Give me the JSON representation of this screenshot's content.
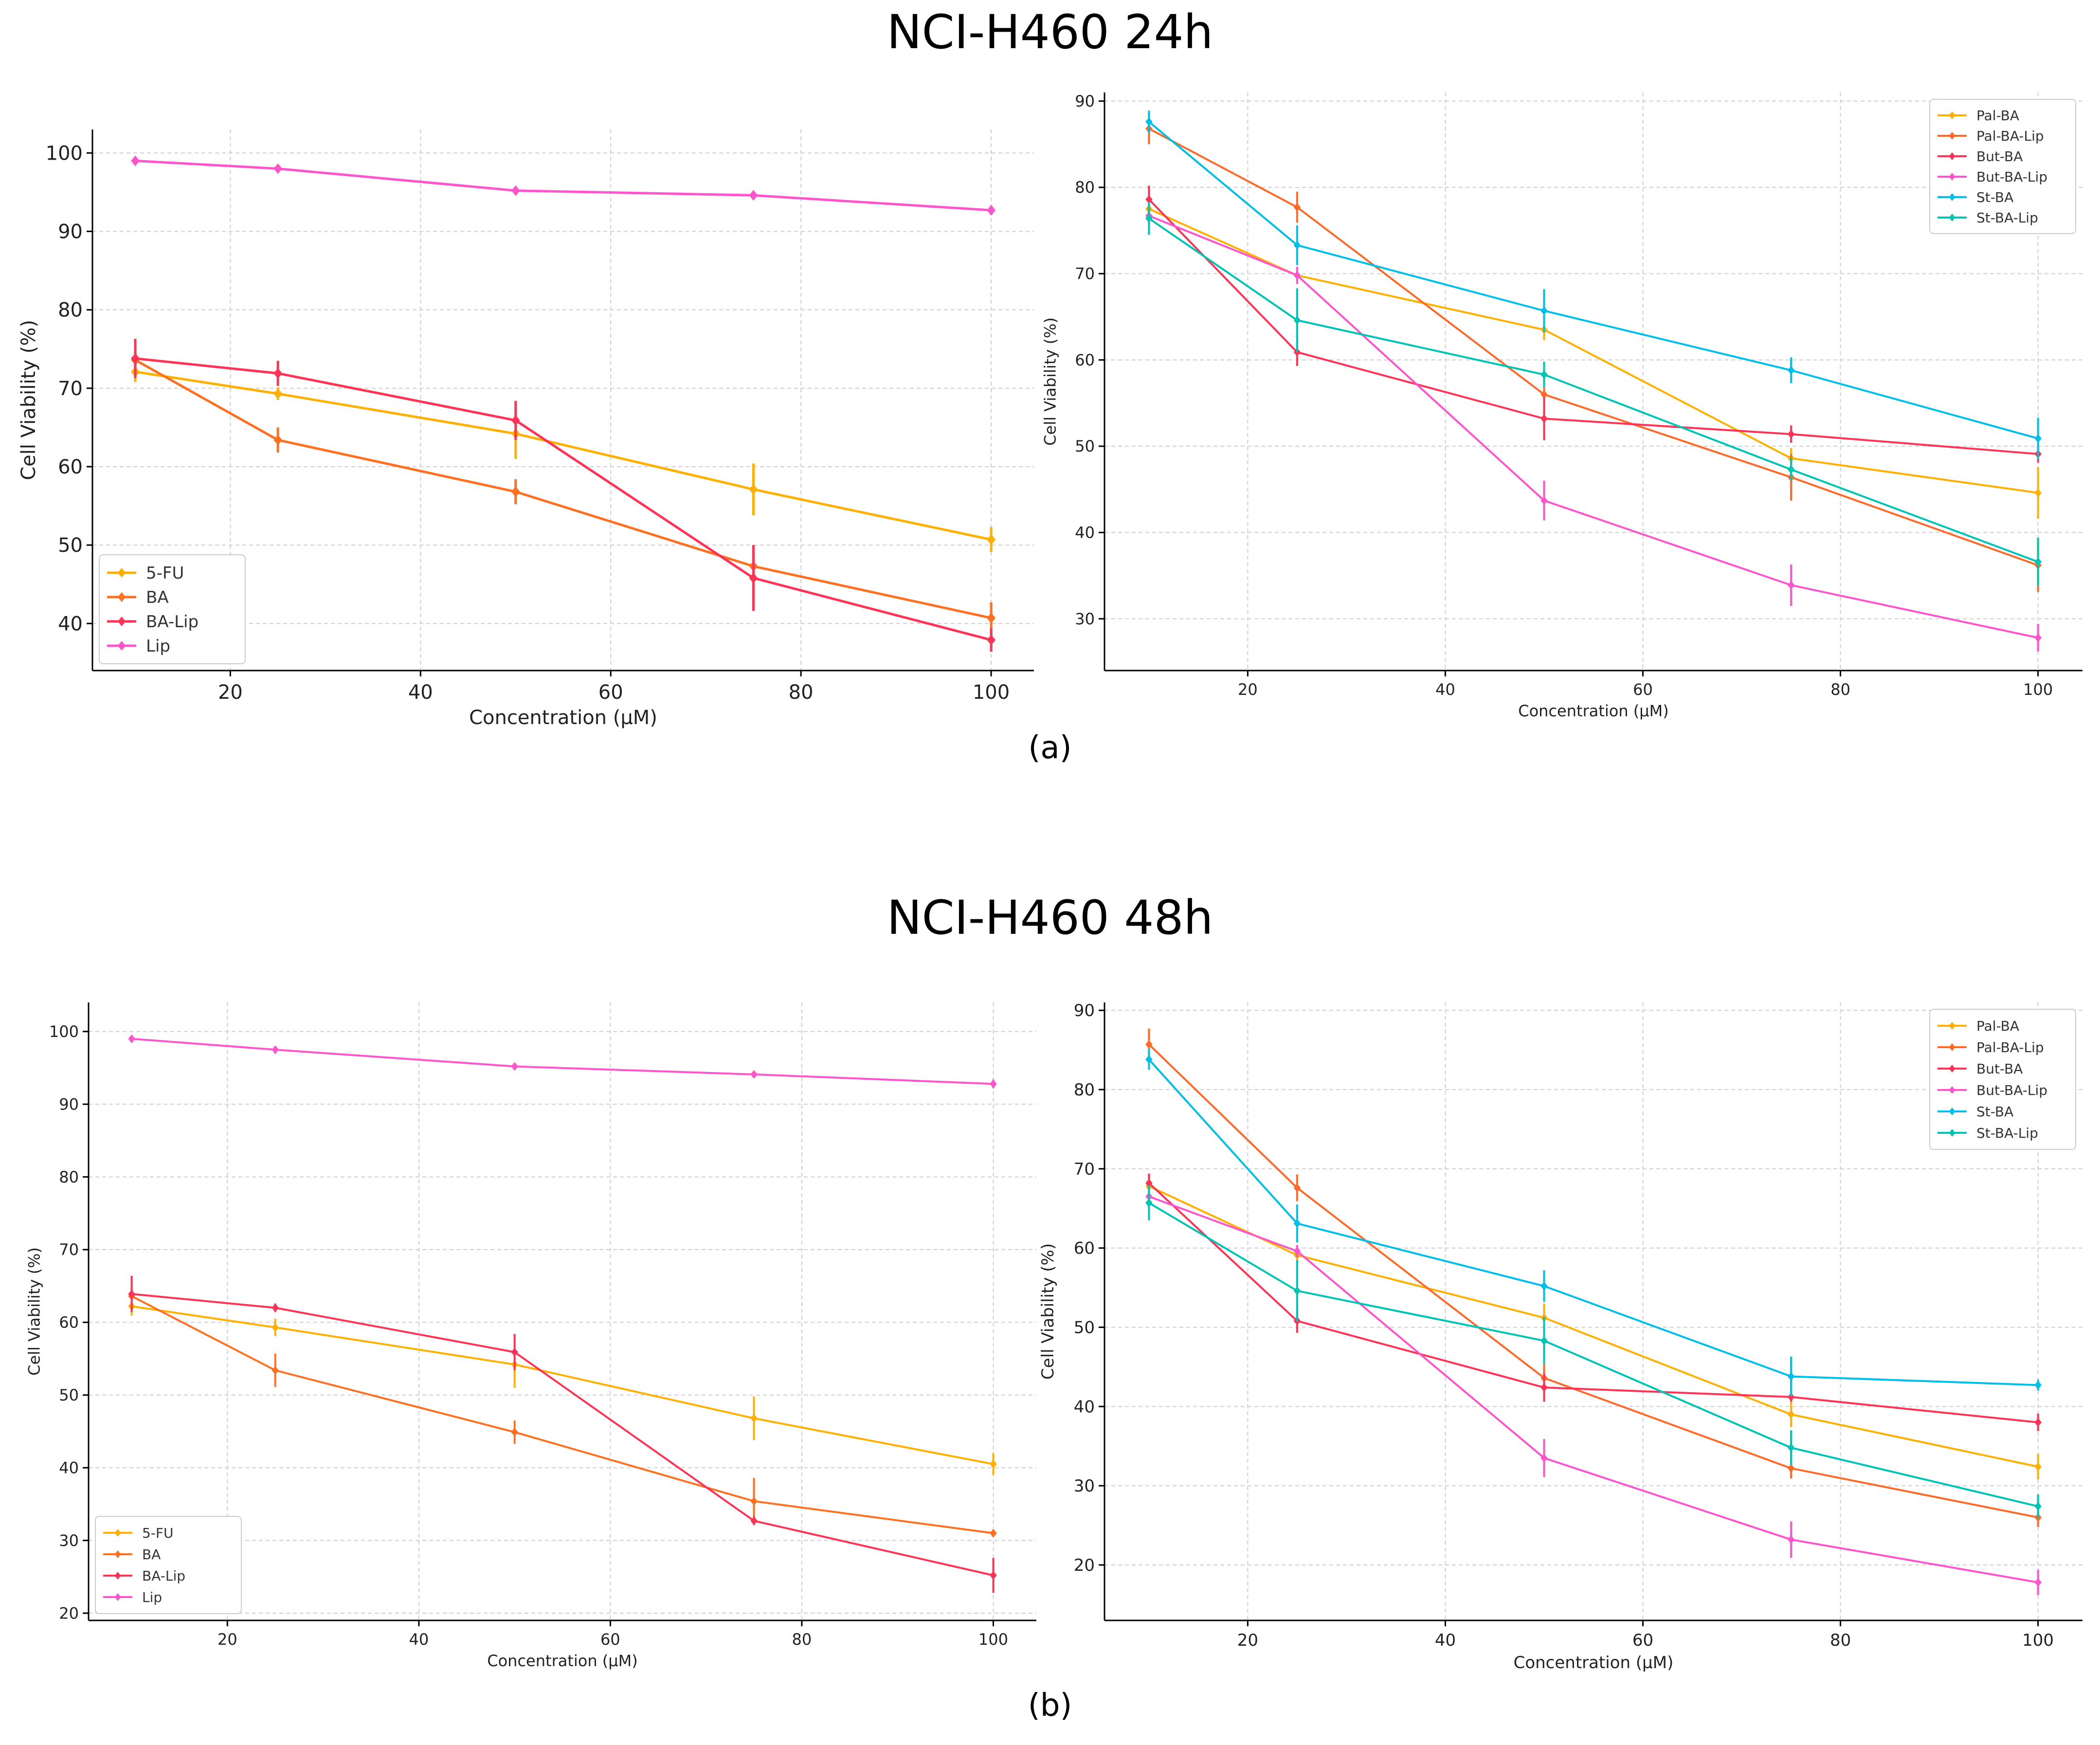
{
  "figure": {
    "title_a": "NCI-H460 24h",
    "title_b": "NCI-H460 48h",
    "label_a": "(a)",
    "label_b": "(b)"
  },
  "colors": {
    "5-FU": "#FFB000",
    "BA": "#FF7020",
    "BA-Lip": "#FF3355",
    "Lip": "#FF55CC",
    "Pal-BA": "#FFB000",
    "Pal-BA-Lip": "#FF6A28",
    "But-BA": "#FF3355",
    "But-BA-Lip": "#FF55CC",
    "St-BA": "#00BFE8",
    "St-BA-Lip": "#00C4B4"
  },
  "chart_data": [
    {
      "type": "line",
      "title": "",
      "xlabel": "Concentration (μM)",
      "ylabel": "Cell Viability (%)",
      "x": [
        10,
        25,
        50,
        75,
        100
      ],
      "xlim": [
        5.5,
        104.5
      ],
      "ylim": [
        34,
        103
      ],
      "xticks": [
        20,
        40,
        60,
        80,
        100
      ],
      "yticks": [
        40,
        50,
        60,
        70,
        80,
        90,
        100
      ],
      "grid": true,
      "legend_position": "lower-left",
      "series": [
        {
          "name": "5-FU",
          "values": [
            72.1,
            69.3,
            64.2,
            57.1,
            50.7
          ],
          "errors": [
            1.3,
            0.8,
            3.2,
            3.3,
            1.6
          ]
        },
        {
          "name": "BA",
          "values": [
            73.6,
            63.4,
            56.8,
            47.3,
            40.7
          ],
          "errors": [
            1.0,
            1.6,
            1.6,
            1.3,
            2.0
          ]
        },
        {
          "name": "BA-Lip",
          "values": [
            73.8,
            71.9,
            65.9,
            45.8,
            37.9
          ],
          "errors": [
            2.5,
            1.6,
            2.5,
            4.2,
            1.5
          ]
        },
        {
          "name": "Lip",
          "values": [
            99.0,
            98.0,
            95.2,
            94.6,
            92.7
          ],
          "errors": [
            0.5,
            0.4,
            0.5,
            0.4,
            0.6
          ]
        }
      ]
    },
    {
      "type": "line",
      "title": "",
      "xlabel": "Concentration (μM)",
      "ylabel": "Cell Viability (%)",
      "x": [
        10,
        25,
        50,
        75,
        100
      ],
      "xlim": [
        5.5,
        104.5
      ],
      "ylim": [
        24,
        91
      ],
      "xticks": [
        20,
        40,
        60,
        80,
        100
      ],
      "yticks": [
        30,
        40,
        50,
        60,
        70,
        80,
        90
      ],
      "grid": true,
      "legend_position": "top-right",
      "series": [
        {
          "name": "Pal-BA",
          "values": [
            77.5,
            69.8,
            63.5,
            48.6,
            44.6
          ],
          "errors": [
            1.5,
            1.0,
            1.2,
            1.2,
            3.0
          ]
        },
        {
          "name": "Pal-BA-Lip",
          "values": [
            86.8,
            77.7,
            56.0,
            46.4,
            36.2
          ],
          "errors": [
            1.8,
            1.8,
            3.0,
            2.7,
            3.1
          ]
        },
        {
          "name": "But-BA",
          "values": [
            78.6,
            60.9,
            53.2,
            51.4,
            49.1
          ],
          "errors": [
            1.6,
            1.6,
            2.5,
            1.0,
            1.0
          ]
        },
        {
          "name": "But-BA-Lip",
          "values": [
            76.7,
            69.8,
            43.7,
            33.9,
            27.8
          ],
          "errors": [
            1.2,
            1.0,
            2.3,
            2.4,
            1.6
          ]
        },
        {
          "name": "St-BA",
          "values": [
            87.6,
            73.3,
            65.7,
            58.8,
            50.9
          ],
          "errors": [
            1.3,
            2.3,
            2.5,
            1.5,
            2.4
          ]
        },
        {
          "name": "St-BA-Lip",
          "values": [
            76.4,
            64.6,
            58.3,
            47.3,
            36.6
          ],
          "errors": [
            1.9,
            3.7,
            1.5,
            1.3,
            2.8
          ]
        }
      ]
    },
    {
      "type": "line",
      "title": "",
      "xlabel": "Concentration (μM)",
      "ylabel": "Cell Viability (%)",
      "x": [
        10,
        25,
        50,
        75,
        100
      ],
      "xlim": [
        5.5,
        104.5
      ],
      "ylim": [
        19,
        104
      ],
      "xticks": [
        20,
        40,
        60,
        80,
        100
      ],
      "yticks": [
        20,
        30,
        40,
        50,
        60,
        70,
        80,
        90,
        100
      ],
      "grid": true,
      "legend_position": "lower-left",
      "series": [
        {
          "name": "5-FU",
          "values": [
            62.2,
            59.3,
            54.2,
            46.8,
            40.5
          ],
          "errors": [
            1.3,
            1.2,
            3.2,
            3.0,
            1.5
          ]
        },
        {
          "name": "BA",
          "values": [
            63.6,
            53.4,
            44.9,
            35.4,
            31.0
          ],
          "errors": [
            1.0,
            2.3,
            1.6,
            3.2,
            0.5
          ]
        },
        {
          "name": "BA-Lip",
          "values": [
            63.9,
            62.0,
            55.9,
            32.7,
            25.2
          ],
          "errors": [
            2.5,
            0.6,
            2.5,
            0.6,
            2.4
          ]
        },
        {
          "name": "Lip",
          "values": [
            99.0,
            97.5,
            95.2,
            94.1,
            92.8
          ],
          "errors": [
            0.4,
            0.5,
            0.4,
            0.4,
            0.6
          ]
        }
      ]
    },
    {
      "type": "line",
      "title": "",
      "xlabel": "Concentration (μM)",
      "ylabel": "Cell Viability (%)",
      "x": [
        10,
        25,
        50,
        75,
        100
      ],
      "xlim": [
        5.5,
        104.5
      ],
      "ylim": [
        13,
        91
      ],
      "xticks": [
        20,
        40,
        60,
        80,
        100
      ],
      "yticks": [
        20,
        30,
        40,
        50,
        60,
        70,
        80,
        90
      ],
      "grid": true,
      "legend_position": "top-right",
      "series": [
        {
          "name": "Pal-BA",
          "values": [
            67.8,
            59.1,
            51.2,
            39.0,
            32.4
          ],
          "errors": [
            1.5,
            1.2,
            1.8,
            1.6,
            1.6
          ]
        },
        {
          "name": "Pal-BA-Lip",
          "values": [
            85.7,
            67.6,
            43.6,
            32.2,
            26.0
          ],
          "errors": [
            2.0,
            1.7,
            1.8,
            1.3,
            1.2
          ]
        },
        {
          "name": "But-BA",
          "values": [
            68.2,
            50.8,
            42.4,
            41.2,
            38.0
          ],
          "errors": [
            1.2,
            1.5,
            1.8,
            0.6,
            1.1
          ]
        },
        {
          "name": "But-BA-Lip",
          "values": [
            66.5,
            59.6,
            33.5,
            23.2,
            17.8
          ],
          "errors": [
            1.4,
            0.8,
            2.4,
            2.3,
            1.6
          ]
        },
        {
          "name": "St-BA",
          "values": [
            83.8,
            63.1,
            55.2,
            43.8,
            42.7
          ],
          "errors": [
            1.3,
            2.4,
            2.0,
            2.5,
            0.7
          ]
        },
        {
          "name": "St-BA-Lip",
          "values": [
            65.7,
            54.6,
            48.3,
            34.8,
            27.4
          ],
          "errors": [
            2.2,
            3.9,
            3.0,
            2.2,
            1.5
          ]
        }
      ]
    }
  ]
}
